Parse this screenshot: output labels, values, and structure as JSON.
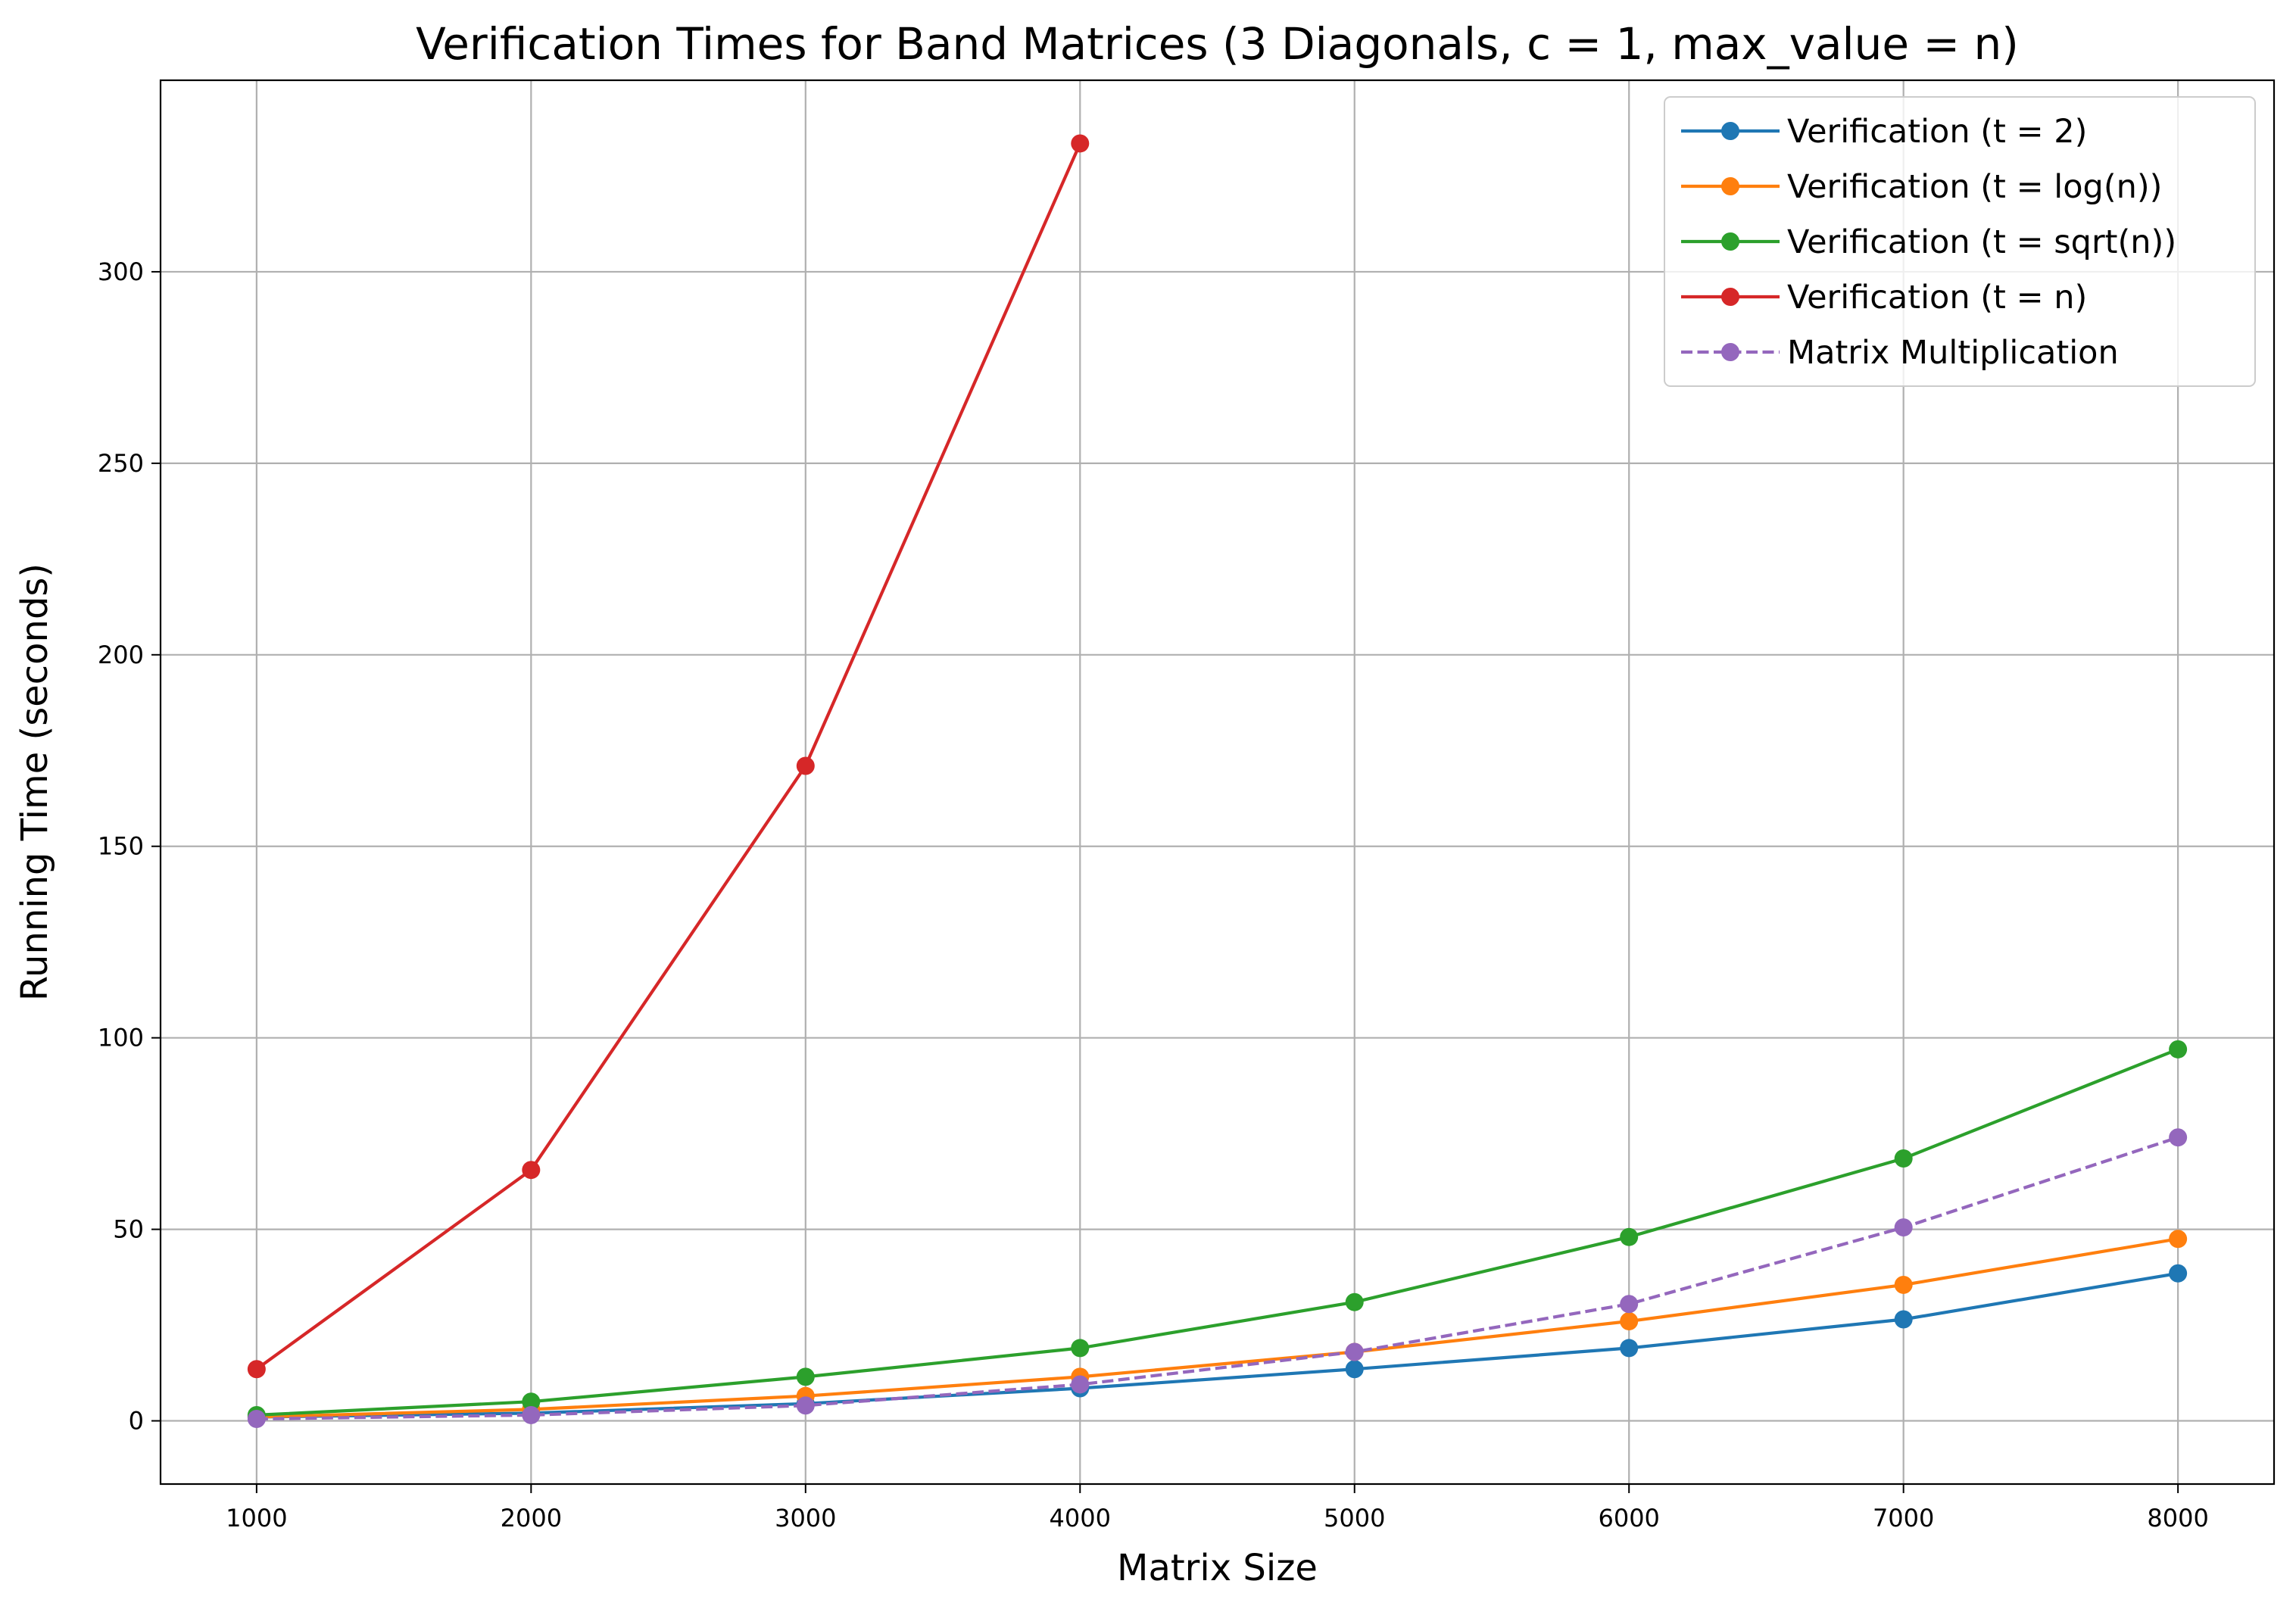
{
  "chart_data": {
    "type": "line",
    "title": "Verification Times for Band Matrices (3 Diagonals, c = 1, max_value = n)",
    "xlabel": "Matrix Size",
    "ylabel": "Running Time (seconds)",
    "xlim": [
      650,
      8350
    ],
    "ylim": [
      -16.5,
      350
    ],
    "xticks": [
      1000,
      2000,
      3000,
      4000,
      5000,
      6000,
      7000,
      8000
    ],
    "yticks": [
      0,
      50,
      100,
      150,
      200,
      250,
      300
    ],
    "grid": true,
    "legend_position": "upper right",
    "series": [
      {
        "name": "Verification (t = 2)",
        "color": "#1f77b4",
        "line_style": "solid",
        "marker": "circle",
        "x": [
          1000,
          2000,
          3000,
          4000,
          5000,
          6000,
          7000,
          8000
        ],
        "y": [
          1.0,
          2.0,
          4.5,
          8.5,
          13.5,
          19.0,
          26.5,
          38.5
        ]
      },
      {
        "name": "Verification (t = log(n))",
        "color": "#ff7f0e",
        "line_style": "solid",
        "marker": "circle",
        "x": [
          1000,
          2000,
          3000,
          4000,
          5000,
          6000,
          7000,
          8000
        ],
        "y": [
          1.0,
          3.0,
          6.5,
          11.5,
          18.0,
          26.0,
          35.5,
          47.5
        ]
      },
      {
        "name": "Verification (t = sqrt(n))",
        "color": "#2ca02c",
        "line_style": "solid",
        "marker": "circle",
        "x": [
          1000,
          2000,
          3000,
          4000,
          5000,
          6000,
          7000,
          8000
        ],
        "y": [
          1.5,
          5.0,
          11.5,
          19.0,
          31.0,
          48.0,
          68.5,
          97.0
        ]
      },
      {
        "name": "Verification (t = n)",
        "color": "#d62728",
        "line_style": "solid",
        "marker": "circle",
        "x": [
          1000,
          2000,
          3000,
          4000
        ],
        "y": [
          13.5,
          65.5,
          171.0,
          333.5
        ]
      },
      {
        "name": "Matrix Multiplication",
        "color": "#9467bd",
        "line_style": "dashed",
        "marker": "circle",
        "x": [
          1000,
          2000,
          3000,
          4000,
          5000,
          6000,
          7000,
          8000
        ],
        "y": [
          0.5,
          1.5,
          4.0,
          9.5,
          18.0,
          30.5,
          50.5,
          74.0
        ]
      }
    ]
  }
}
